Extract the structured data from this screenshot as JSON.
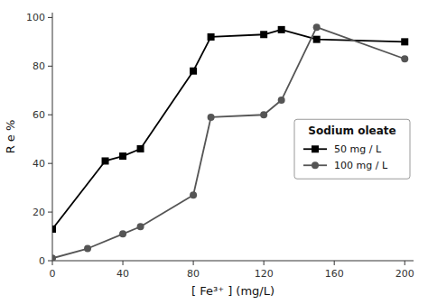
{
  "chart_data": {
    "type": "line",
    "x_label": "[ Fe³⁺ ] (mg/L)",
    "y_label": "R e %",
    "legend_title": "Sodium oleate",
    "legend": "right",
    "grid": false,
    "xlim": [
      0,
      205
    ],
    "ylim": [
      0,
      102
    ],
    "xticks": [
      0,
      40,
      80,
      120,
      160,
      200
    ],
    "yticks": [
      0,
      20,
      40,
      60,
      80,
      100
    ],
    "series": [
      {
        "name": "50 mg / L",
        "color": "#000000",
        "marker": "square",
        "x": [
          0,
          30,
          40,
          50,
          80,
          90,
          120,
          130,
          150,
          200
        ],
        "values": [
          13,
          41,
          43,
          46,
          78,
          92,
          93,
          95,
          91,
          90
        ]
      },
      {
        "name": "100 mg / L",
        "color": "#555555",
        "marker": "circle",
        "x": [
          0,
          20,
          40,
          50,
          80,
          90,
          120,
          130,
          150,
          200
        ],
        "values": [
          1,
          5,
          11,
          14,
          27,
          59,
          60,
          66,
          96,
          83
        ]
      }
    ]
  }
}
